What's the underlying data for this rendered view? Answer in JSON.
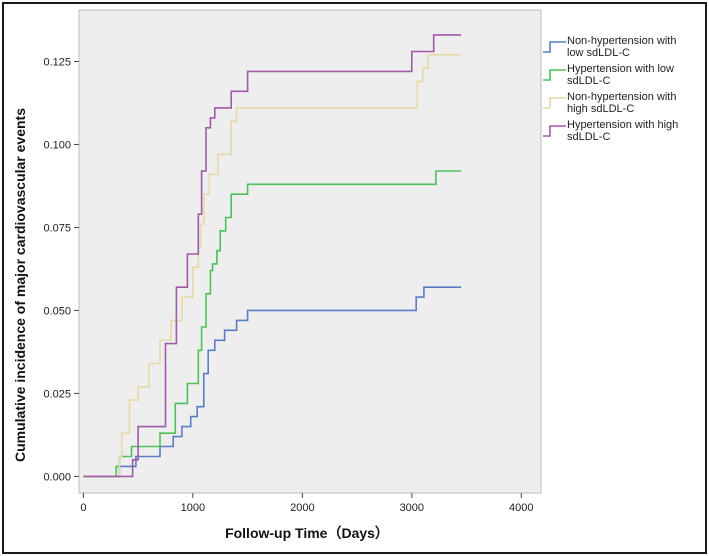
{
  "chart_data": {
    "type": "line",
    "xlabel": "Follow-up Time（Days）",
    "ylabel": "Cumulative incidence of major cardiovascular events",
    "xlim": [
      -40,
      4180
    ],
    "ylim": [
      -0.005,
      0.1405
    ],
    "xticks": [
      0,
      1000,
      2000,
      3000,
      4000
    ],
    "xtick_labels": [
      "0",
      "1000",
      "2000",
      "3000",
      "4000"
    ],
    "yticks": [
      0.0,
      0.025,
      0.05,
      0.075,
      0.1,
      0.125
    ],
    "ytick_labels": [
      "0.000",
      "0.025",
      "0.050",
      "0.075",
      "0.100",
      "0.125"
    ],
    "grid": false,
    "legend_position": "right-outside",
    "series": [
      {
        "name": "Non-hypertension with low sdLDL-C",
        "color": "#5b7bc4",
        "x": [
          0,
          330,
          480,
          700,
          820,
          900,
          980,
          1040,
          1100,
          1140,
          1200,
          1290,
          1400,
          1500,
          3040,
          3110,
          3450
        ],
        "y": [
          0,
          0.003,
          0.006,
          0.009,
          0.012,
          0.015,
          0.018,
          0.021,
          0.031,
          0.038,
          0.041,
          0.044,
          0.047,
          0.05,
          0.054,
          0.057,
          0.057
        ]
      },
      {
        "name": "Hypertension with low sdLDL-C",
        "color": "#4cc05a",
        "x": [
          0,
          300,
          330,
          440,
          700,
          840,
          950,
          1050,
          1080,
          1120,
          1160,
          1180,
          1220,
          1250,
          1300,
          1350,
          1500,
          3220,
          3450
        ],
        "y": [
          0,
          0.003,
          0.006,
          0.009,
          0.013,
          0.022,
          0.028,
          0.038,
          0.045,
          0.055,
          0.062,
          0.064,
          0.068,
          0.074,
          0.078,
          0.085,
          0.088,
          0.092,
          0.092
        ]
      },
      {
        "name": "Non-hypertension with high sdLDL-C",
        "color": "#e6d9a8",
        "x": [
          0,
          330,
          350,
          420,
          500,
          600,
          700,
          800,
          900,
          1000,
          1050,
          1070,
          1100,
          1150,
          1230,
          1350,
          1400,
          3050,
          3100,
          3150,
          3450
        ],
        "y": [
          0,
          0.006,
          0.013,
          0.023,
          0.027,
          0.034,
          0.041,
          0.047,
          0.054,
          0.063,
          0.069,
          0.076,
          0.085,
          0.091,
          0.097,
          0.107,
          0.111,
          0.119,
          0.123,
          0.127,
          0.127
        ]
      },
      {
        "name": "Hypertension with high sdLDL-C",
        "color": "#a05aa8",
        "x": [
          0,
          450,
          500,
          750,
          850,
          950,
          1050,
          1080,
          1120,
          1160,
          1200,
          1350,
          1500,
          3000,
          3200,
          3450
        ],
        "y": [
          0,
          0.005,
          0.015,
          0.04,
          0.057,
          0.067,
          0.079,
          0.092,
          0.105,
          0.108,
          0.111,
          0.116,
          0.122,
          0.128,
          0.133,
          0.133
        ]
      }
    ]
  }
}
